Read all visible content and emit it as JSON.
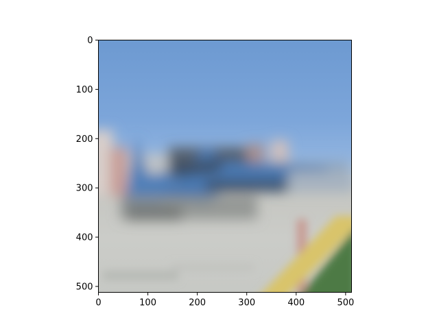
{
  "image": {
    "description_tag": "blurred-photo",
    "colors": {
      "sky_top": "#6b98d0",
      "sky_mid": "#7da6da",
      "sky_low": "#9ebde3",
      "ground": "#c9cac6",
      "ground_dark": "#a9aca8",
      "stripe_yellow": "#d9c46a",
      "grass": "#4d7a45",
      "object_blue": "#4f7fb8",
      "object_dark": "#3d4f66",
      "building": "#d8c7bf",
      "building_red": "#c88d86"
    }
  },
  "axes": {
    "x_ticks": [
      "0",
      "100",
      "200",
      "300",
      "400",
      "500"
    ],
    "y_ticks": [
      "0",
      "100",
      "200",
      "300",
      "400",
      "500"
    ],
    "x_tick_values": [
      0,
      100,
      200,
      300,
      400,
      500
    ],
    "y_tick_values": [
      0,
      100,
      200,
      300,
      400,
      500
    ],
    "xlim": [
      0,
      512
    ],
    "ylim": [
      512,
      0
    ],
    "spine_color": "#000000"
  }
}
